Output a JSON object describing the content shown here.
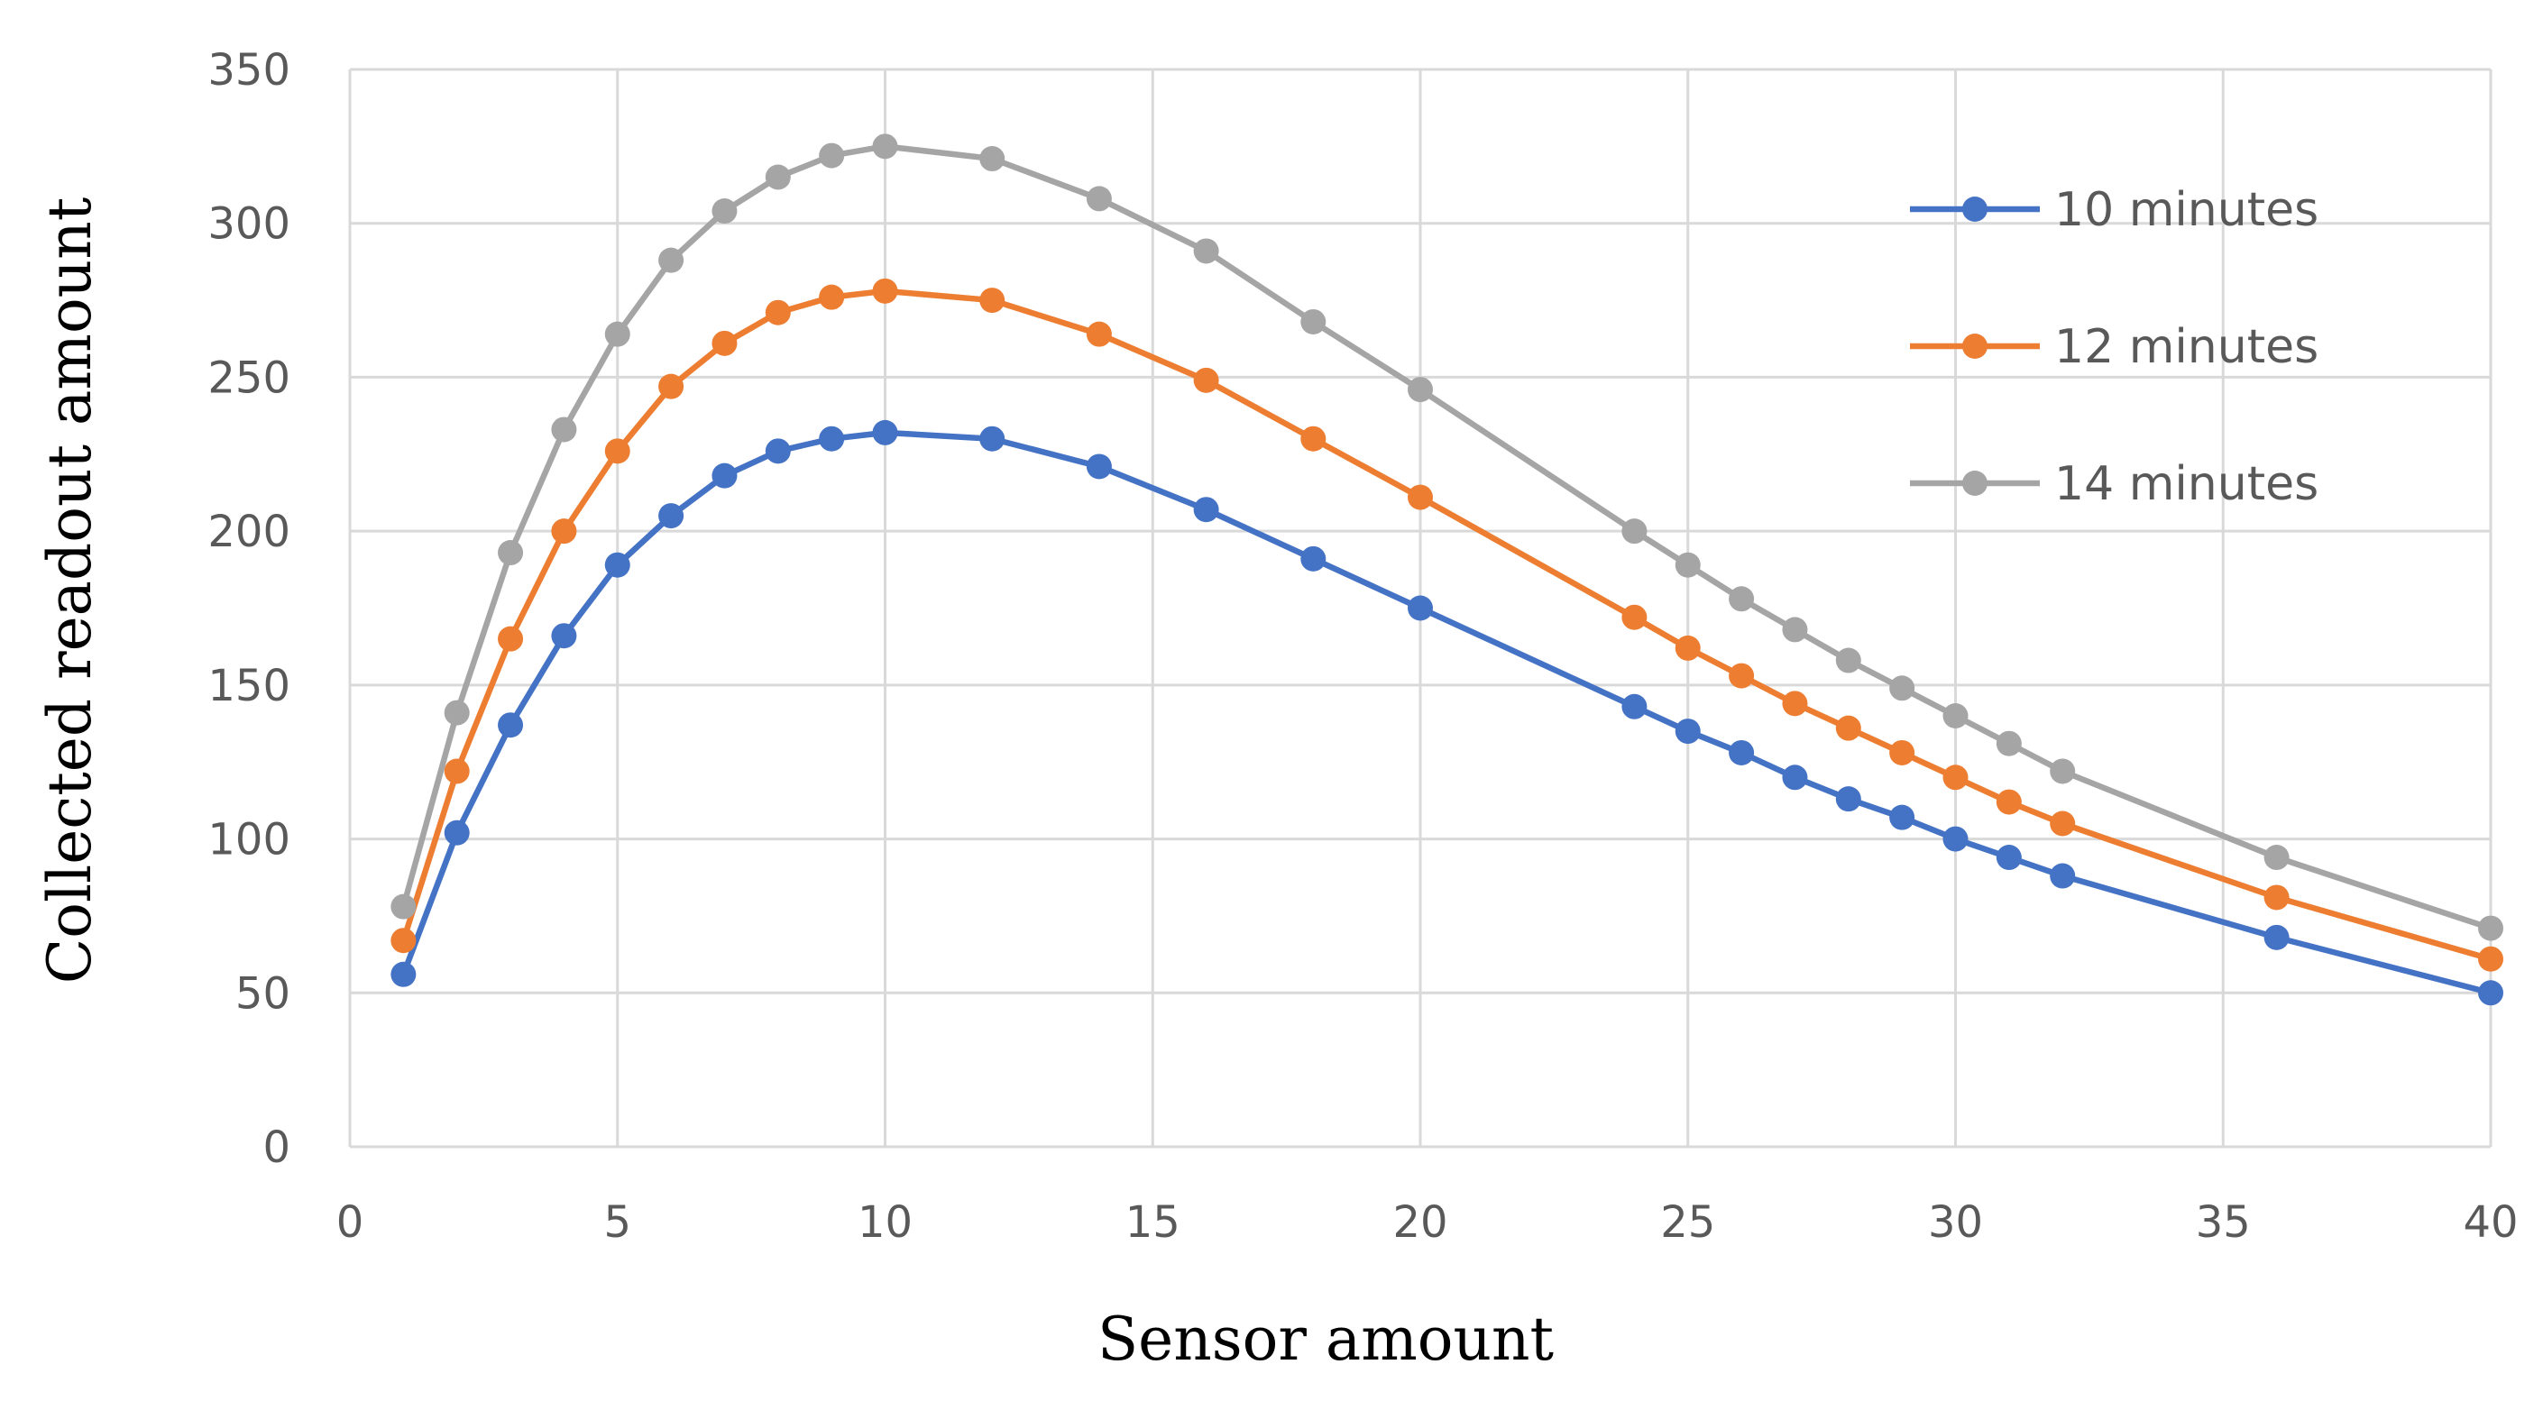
{
  "chart_data": {
    "type": "line",
    "title": "",
    "xlabel": "Sensor amount",
    "ylabel": "Collected readout amount",
    "xlim": [
      0,
      40
    ],
    "ylim": [
      0,
      350
    ],
    "xticks": [
      0,
      5,
      10,
      15,
      20,
      25,
      30,
      35,
      40
    ],
    "yticks": [
      0,
      50,
      100,
      150,
      200,
      250,
      300,
      350
    ],
    "grid": true,
    "legend_position": "top-right",
    "x": [
      1,
      2,
      3,
      4,
      5,
      6,
      7,
      8,
      9,
      10,
      12,
      14,
      16,
      18,
      20,
      24,
      25,
      26,
      27,
      28,
      29,
      30,
      31,
      32,
      36,
      40
    ],
    "series": [
      {
        "name": "10 minutes",
        "color": "#4472C4",
        "values": [
          56,
          102,
          137,
          166,
          189,
          205,
          218,
          226,
          230,
          232,
          230,
          221,
          207,
          191,
          175,
          143,
          135,
          128,
          120,
          113,
          107,
          100,
          94,
          88,
          68,
          50
        ]
      },
      {
        "name": "12 minutes",
        "color": "#ED7D31",
        "values": [
          67,
          122,
          165,
          200,
          226,
          247,
          261,
          271,
          276,
          278,
          275,
          264,
          249,
          230,
          211,
          172,
          162,
          153,
          144,
          136,
          128,
          120,
          112,
          105,
          81,
          61
        ]
      },
      {
        "name": "14 minutes",
        "color": "#A5A5A5",
        "values": [
          78,
          141,
          193,
          233,
          264,
          288,
          304,
          315,
          322,
          325,
          321,
          308,
          291,
          268,
          246,
          200,
          189,
          178,
          168,
          158,
          149,
          140,
          131,
          122,
          94,
          71
        ]
      }
    ]
  }
}
